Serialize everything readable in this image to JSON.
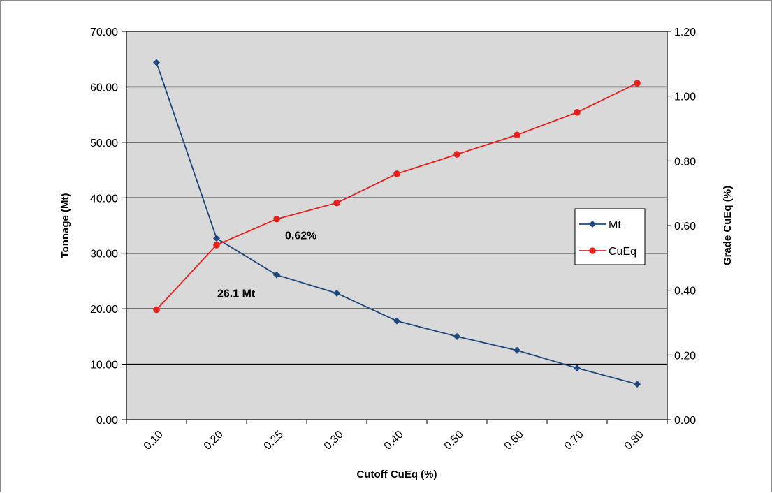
{
  "chart_data": {
    "type": "line",
    "categories": [
      "0.10",
      "0.20",
      "0.25",
      "0.30",
      "0.40",
      "0.50",
      "0.60",
      "0.70",
      "0.80"
    ],
    "series": [
      {
        "name": "Mt",
        "axis": "left",
        "color": "#1f497d",
        "marker": "diamond",
        "values": [
          64.4,
          32.7,
          26.1,
          22.8,
          17.8,
          15.0,
          12.5,
          9.3,
          6.4
        ]
      },
      {
        "name": "CuEq",
        "axis": "right",
        "color": "#e8201c",
        "marker": "circle",
        "values": [
          0.34,
          0.54,
          0.62,
          0.67,
          0.76,
          0.82,
          0.88,
          0.95,
          1.04
        ]
      }
    ],
    "xlabel": "Cutoff CuEq (%)",
    "ylabel": "Tonnage (Mt)",
    "y2label": "Grade CuEq (%)",
    "ylim": [
      0,
      70
    ],
    "y_ticks": [
      "0.00",
      "10.00",
      "20.00",
      "30.00",
      "40.00",
      "50.00",
      "60.00",
      "70.00"
    ],
    "y2lim": [
      0,
      1.2
    ],
    "y2_ticks": [
      "0.00",
      "0.20",
      "0.40",
      "0.60",
      "0.80",
      "1.00",
      "1.20"
    ],
    "grid": true,
    "plot_background": "#d9d9d9",
    "legend": {
      "placement": "right",
      "entries": [
        "Mt",
        "CuEq"
      ]
    },
    "annotations": [
      {
        "text": "0.62%",
        "series": "CuEq",
        "category": "0.25"
      },
      {
        "text": "26.1 Mt",
        "series": "Mt",
        "category": "0.25"
      }
    ]
  }
}
